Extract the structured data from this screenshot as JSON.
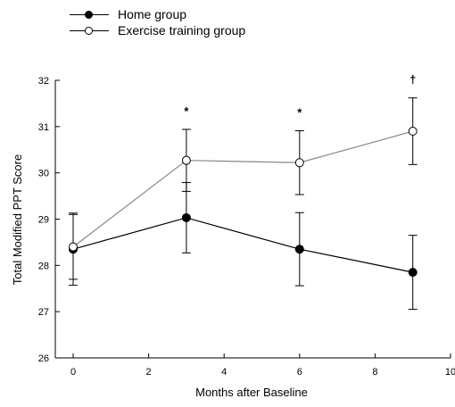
{
  "chart_data": {
    "type": "line",
    "ylabel": "Total Modified PPT Score",
    "xlabel": "Months after Baseline",
    "xlim": [
      0,
      10
    ],
    "ylim": [
      26,
      32
    ],
    "xticks": [
      0,
      2,
      4,
      6,
      8,
      10
    ],
    "yticks": [
      26,
      27,
      28,
      29,
      30,
      31,
      32
    ],
    "grid": false,
    "legend_position": "top-left",
    "series": [
      {
        "name": "Home group",
        "marker": "filled-circle",
        "line_color": "#000000",
        "x": [
          0,
          3,
          6,
          9
        ],
        "y": [
          28.35,
          29.03,
          28.35,
          27.85
        ],
        "err": [
          0.78,
          0.76,
          0.79,
          0.8
        ]
      },
      {
        "name": "Exercise training group",
        "marker": "open-circle",
        "line_color": "#888888",
        "x": [
          0,
          3,
          6,
          9
        ],
        "y": [
          28.4,
          30.27,
          30.22,
          30.9
        ],
        "err": [
          0.7,
          0.67,
          0.69,
          0.72
        ]
      }
    ],
    "annotations": [
      {
        "x": 3,
        "text": "*"
      },
      {
        "x": 6,
        "text": "*"
      },
      {
        "x": 9,
        "text": "†"
      }
    ]
  }
}
